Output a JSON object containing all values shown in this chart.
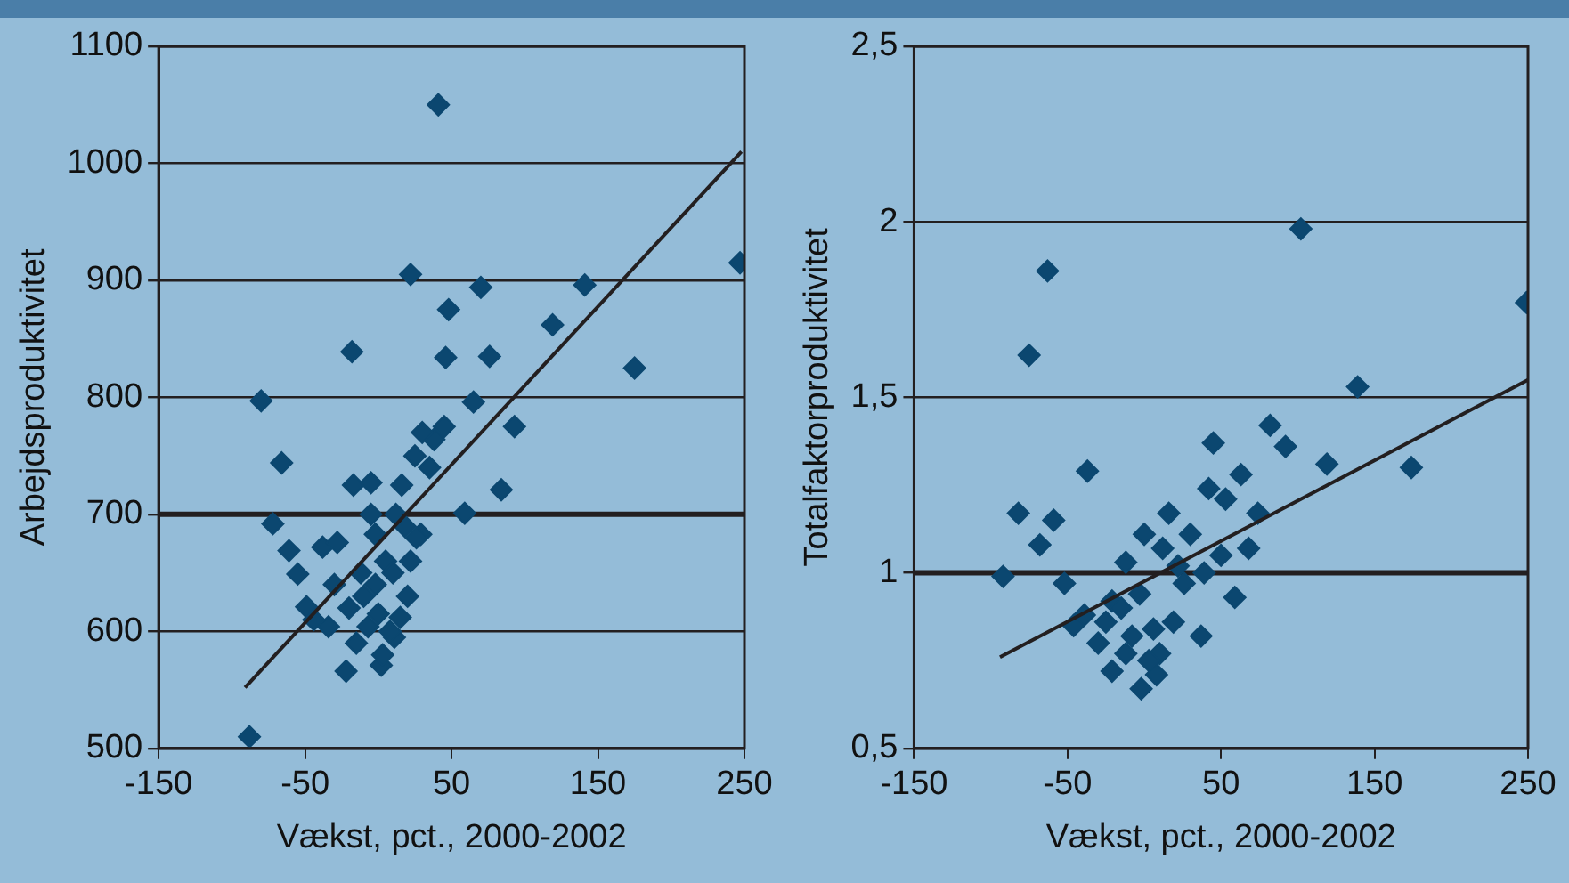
{
  "chart_data": [
    {
      "type": "scatter",
      "xlabel": "Vækst, pct., 2000-2002",
      "ylabel": "Arbejdsproduktivitet",
      "xlim": [
        -150,
        250
      ],
      "xticks": [
        -150,
        -50,
        50,
        150,
        250
      ],
      "ylim": [
        500,
        1100
      ],
      "yticks": [
        500,
        600,
        700,
        800,
        900,
        1000,
        1100
      ],
      "grid": "y",
      "marker": "diamond",
      "legend": false,
      "ref_lines": [
        {
          "axis": "y",
          "value": 700,
          "color": "#231f20"
        }
      ],
      "series": [
        {
          "color": "#0b4770",
          "x": [
            -88,
            -80,
            -66,
            -72,
            -61,
            -18,
            22,
            41,
            46,
            70,
            76,
            48,
            119,
            141,
            175,
            247,
            65,
            93,
            84,
            59,
            -17,
            -5,
            38,
            30,
            45,
            25,
            35,
            -55,
            -38,
            -28,
            -49,
            -22,
            2,
            11,
            20,
            29,
            16,
            -2,
            -12,
            -20,
            -34,
            -7,
            -2,
            5,
            8,
            12,
            -10,
            0,
            18,
            22,
            -30,
            -44,
            -15,
            3,
            10,
            -5,
            15,
            26
          ],
          "values": [
            510,
            797,
            744,
            692,
            669,
            839,
            905,
            1050,
            834,
            894,
            835,
            875,
            862,
            896,
            825,
            915,
            796,
            775,
            721,
            701,
            725,
            727,
            764,
            770,
            775,
            750,
            740,
            649,
            672,
            676,
            621,
            566,
            571,
            595,
            630,
            683,
            725,
            683,
            650,
            620,
            604,
            604,
            640,
            660,
            600,
            700,
            630,
            615,
            690,
            660,
            640,
            610,
            590,
            580,
            650,
            700,
            612,
            680
          ]
        },
        {
          "type": "line",
          "color": "#231f20",
          "marker": "none",
          "x": [
            -91,
            248
          ],
          "values": [
            552,
            1010
          ]
        }
      ]
    },
    {
      "type": "scatter",
      "xlabel": "Vækst, pct., 2000-2002",
      "ylabel": "Totalfaktorproduktivitet",
      "xlim": [
        -150,
        250
      ],
      "xticks": [
        -150,
        -50,
        50,
        150,
        250
      ],
      "ylim": [
        0.5,
        2.5
      ],
      "yticks": [
        {
          "value": 0.5,
          "label": "0,5"
        },
        1,
        {
          "value": 1.5,
          "label": "1,5"
        },
        2,
        {
          "value": 2.5,
          "label": "2,5"
        }
      ],
      "grid": "y",
      "marker": "diamond",
      "legend": false,
      "ref_lines": [
        {
          "axis": "y",
          "value": 1,
          "color": "#231f20"
        }
      ],
      "series": [
        {
          "color": "#0b4770",
          "x": [
            102,
            -63,
            -75,
            249,
            139,
            174,
            82,
            92,
            119,
            45,
            63,
            42,
            53,
            -37,
            -82,
            -59,
            -68,
            16,
            74,
            68,
            59,
            37,
            -92,
            -52,
            -2,
            -21,
            8,
            50,
            30,
            0,
            -12,
            26,
            39,
            -39,
            -30,
            -12,
            6,
            19,
            -21,
            -3,
            12,
            -46,
            10,
            -8,
            3,
            -15,
            22,
            -25
          ],
          "values": [
            1.98,
            1.86,
            1.62,
            1.77,
            1.53,
            1.3,
            1.42,
            1.36,
            1.31,
            1.37,
            1.28,
            1.24,
            1.21,
            1.29,
            1.17,
            1.15,
            1.08,
            1.17,
            1.17,
            1.07,
            0.93,
            0.82,
            0.99,
            0.97,
            0.67,
            0.72,
            0.71,
            1.05,
            1.11,
            1.11,
            1.03,
            0.97,
            1.0,
            0.88,
            0.8,
            0.77,
            0.84,
            0.86,
            0.92,
            0.94,
            1.07,
            0.85,
            0.77,
            0.82,
            0.75,
            0.9,
            1.02,
            0.86
          ]
        },
        {
          "type": "line",
          "color": "#231f20",
          "marker": "none",
          "x": [
            -94,
            250
          ],
          "values": [
            0.76,
            1.55
          ]
        }
      ]
    }
  ]
}
